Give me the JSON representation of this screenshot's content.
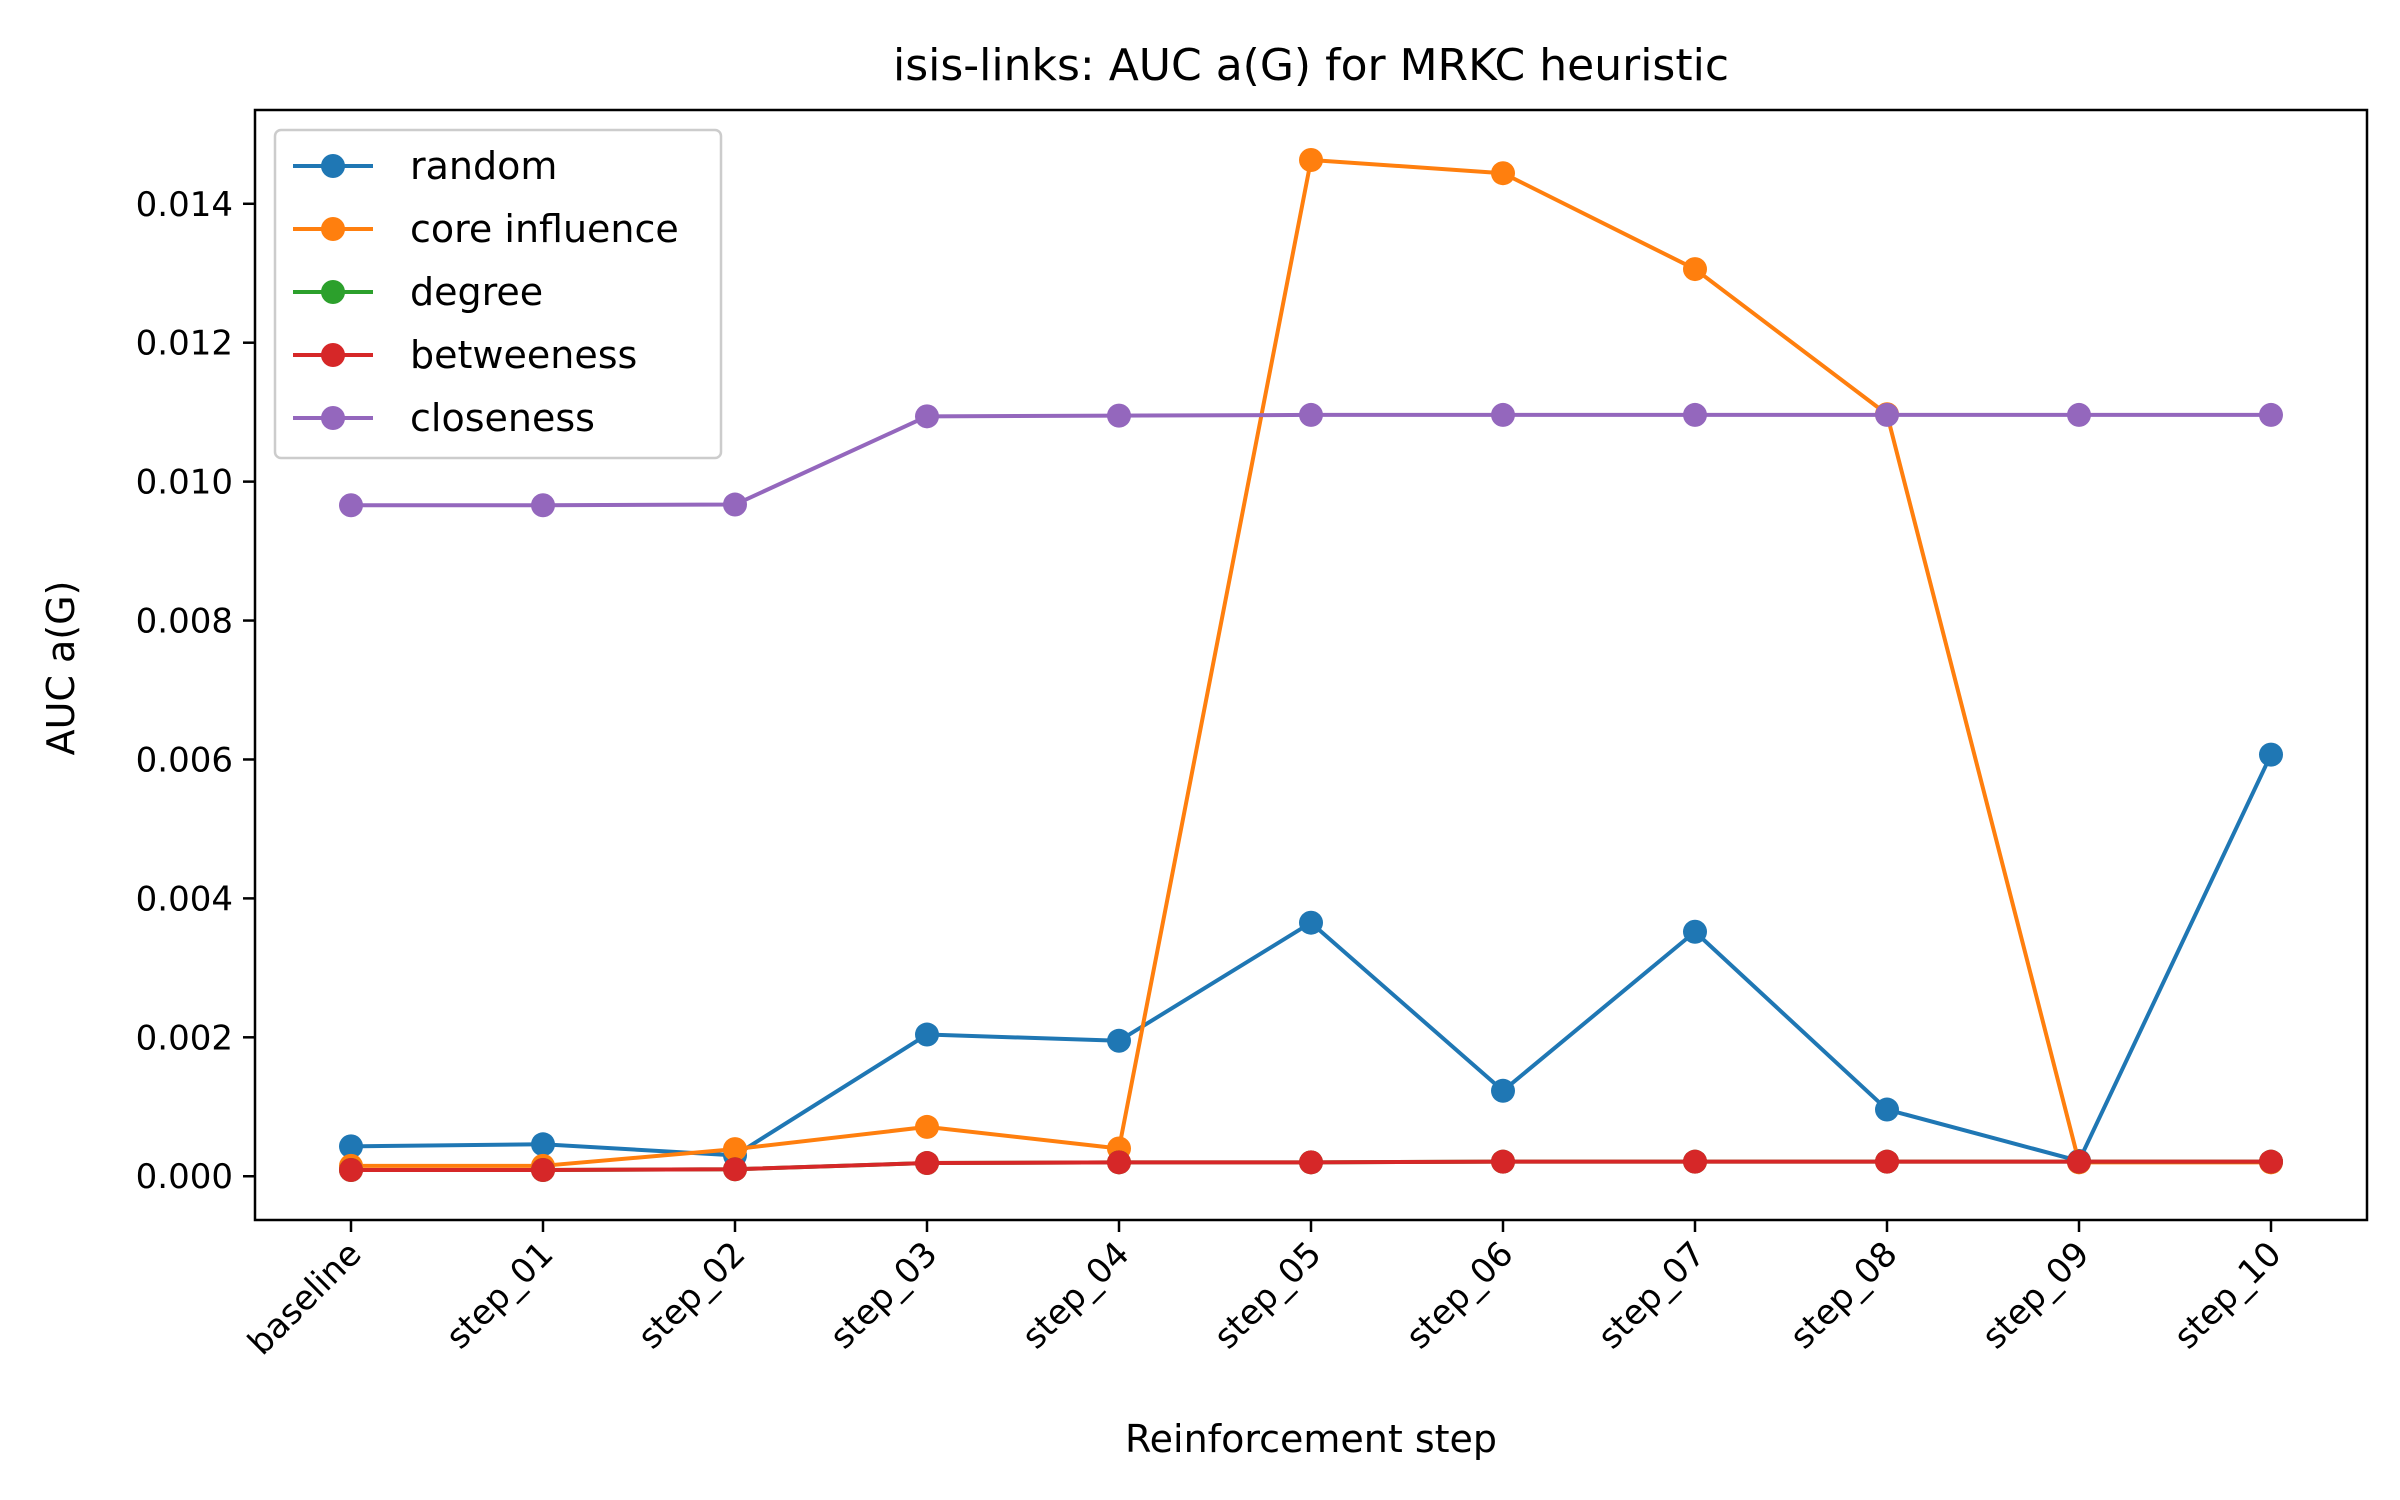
{
  "chart_data": {
    "type": "line",
    "title": "isis-links: AUC a(G) for MRKC heuristic",
    "xlabel": "Reinforcement step",
    "ylabel": "AUC a(G)",
    "categories": [
      "baseline",
      "step_01",
      "step_02",
      "step_03",
      "step_04",
      "step_05",
      "step_06",
      "step_07",
      "step_08",
      "step_09",
      "step_10"
    ],
    "ylim": [
      -0.00063,
      0.01535
    ],
    "yticks": [
      0.0,
      0.002,
      0.004,
      0.006,
      0.008,
      0.01,
      0.012,
      0.014
    ],
    "ytick_labels": [
      "0.000",
      "0.002",
      "0.004",
      "0.006",
      "0.008",
      "0.010",
      "0.012",
      "0.014"
    ],
    "grid": false,
    "legend_position": "top-left",
    "series": [
      {
        "name": "random",
        "color": "#1f77b4",
        "values": [
          0.00043,
          0.00046,
          0.0003,
          0.00204,
          0.00195,
          0.00365,
          0.00123,
          0.00352,
          0.00096,
          0.00022,
          0.00607
        ]
      },
      {
        "name": "core influence",
        "color": "#ff7f0e",
        "values": [
          0.00015,
          0.00015,
          0.00039,
          0.00071,
          0.0004,
          0.01463,
          0.01444,
          0.01306,
          0.01097,
          0.0002,
          0.0002
        ]
      },
      {
        "name": "degree",
        "color": "#2ca02c",
        "values": [
          9e-05,
          9e-05,
          0.0001,
          0.00019,
          0.0002,
          0.0002,
          0.00021,
          0.00021,
          0.00021,
          0.00021,
          0.00021
        ]
      },
      {
        "name": "betweeness",
        "color": "#d62728",
        "values": [
          9e-05,
          9e-05,
          0.0001,
          0.00019,
          0.0002,
          0.0002,
          0.00021,
          0.00021,
          0.00021,
          0.00021,
          0.00021
        ]
      },
      {
        "name": "closeness",
        "color": "#9467bd",
        "values": [
          0.00966,
          0.00966,
          0.00967,
          0.01094,
          0.01095,
          0.01096,
          0.01096,
          0.01096,
          0.01096,
          0.01096,
          0.01096
        ]
      }
    ]
  }
}
